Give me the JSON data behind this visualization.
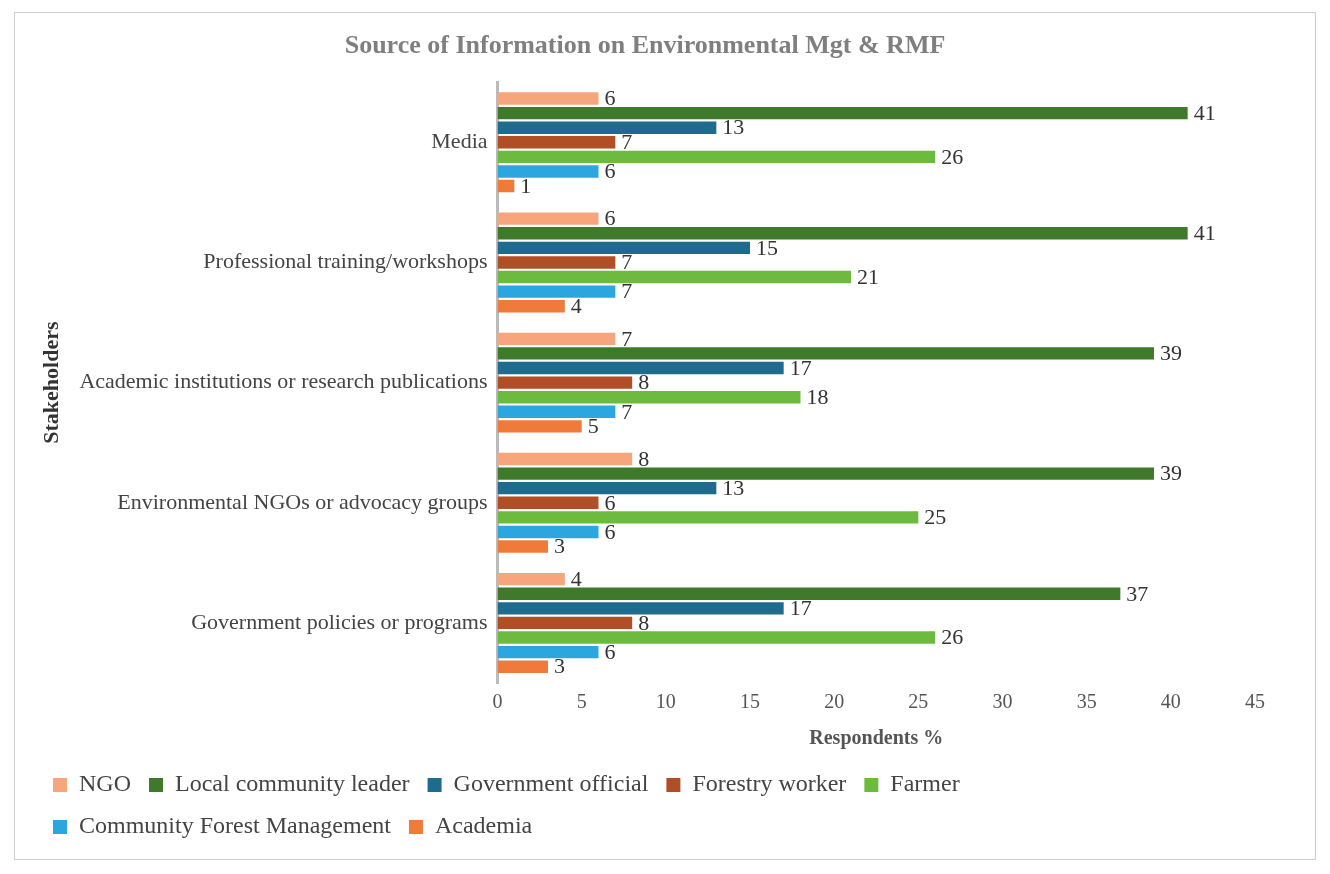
{
  "chart_data": {
    "type": "bar",
    "orientation": "horizontal",
    "title": "Source of Information on Environmental Mgt & RMF",
    "xlabel": "Respondents %",
    "ylabel": "Stakeholders",
    "categories": [
      "Media",
      "Professional training/workshops",
      "Academic institutions or research publications",
      "Environmental NGOs or advocacy groups",
      "Government policies or programs"
    ],
    "series": [
      {
        "name": "NGO",
        "color": "#f6a57c",
        "values": [
          6,
          6,
          7,
          8,
          4
        ]
      },
      {
        "name": "Local community leader",
        "color": "#3e7a2a",
        "values": [
          41,
          41,
          39,
          39,
          37
        ]
      },
      {
        "name": "Government official",
        "color": "#1f6b8e",
        "values": [
          13,
          15,
          17,
          13,
          17
        ]
      },
      {
        "name": "Forestry worker",
        "color": "#b04f25",
        "values": [
          7,
          7,
          8,
          6,
          8
        ]
      },
      {
        "name": "Farmer",
        "color": "#6dbb3e",
        "values": [
          26,
          21,
          18,
          25,
          26
        ]
      },
      {
        "name": "Community Forest Management",
        "color": "#2ca6df",
        "values": [
          6,
          7,
          7,
          6,
          6
        ]
      },
      {
        "name": "Academia",
        "color": "#f07a3a",
        "values": [
          1,
          4,
          5,
          3,
          3
        ]
      }
    ],
    "xlim": [
      0,
      45
    ],
    "xticks": [
      0,
      5,
      10,
      15,
      20,
      25,
      30,
      35,
      40,
      45
    ],
    "grid": false,
    "legend": "bottom",
    "data_labels": true
  }
}
